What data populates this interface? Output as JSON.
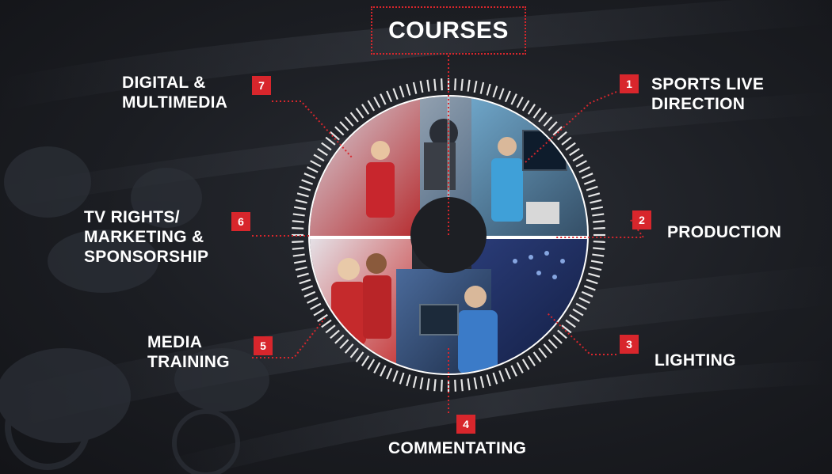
{
  "title": "COURSES",
  "courses": [
    {
      "number": "1",
      "lines": [
        "SPORTS LIVE",
        "DIRECTION"
      ]
    },
    {
      "number": "2",
      "lines": [
        "PRODUCTION"
      ]
    },
    {
      "number": "3",
      "lines": [
        "LIGHTING"
      ]
    },
    {
      "number": "4",
      "lines": [
        "COMMENTATING"
      ]
    },
    {
      "number": "5",
      "lines": [
        "MEDIA",
        "TRAINING"
      ]
    },
    {
      "number": "6",
      "lines": [
        "TV RIGHTS/",
        "MARKETING &",
        "SPONSORSHIP"
      ]
    },
    {
      "number": "7",
      "lines": [
        "DIGITAL &",
        "MULTIMEDIA"
      ]
    }
  ],
  "colors": {
    "accent": "#d8262c",
    "text": "#ffffff",
    "background": "#1b1d22"
  },
  "photos": [
    "camera-operator-photo",
    "director-monitor-photo",
    "athletes-podium-photo",
    "arena-lighting-photo",
    "interview-photo",
    "commentator-photo"
  ]
}
